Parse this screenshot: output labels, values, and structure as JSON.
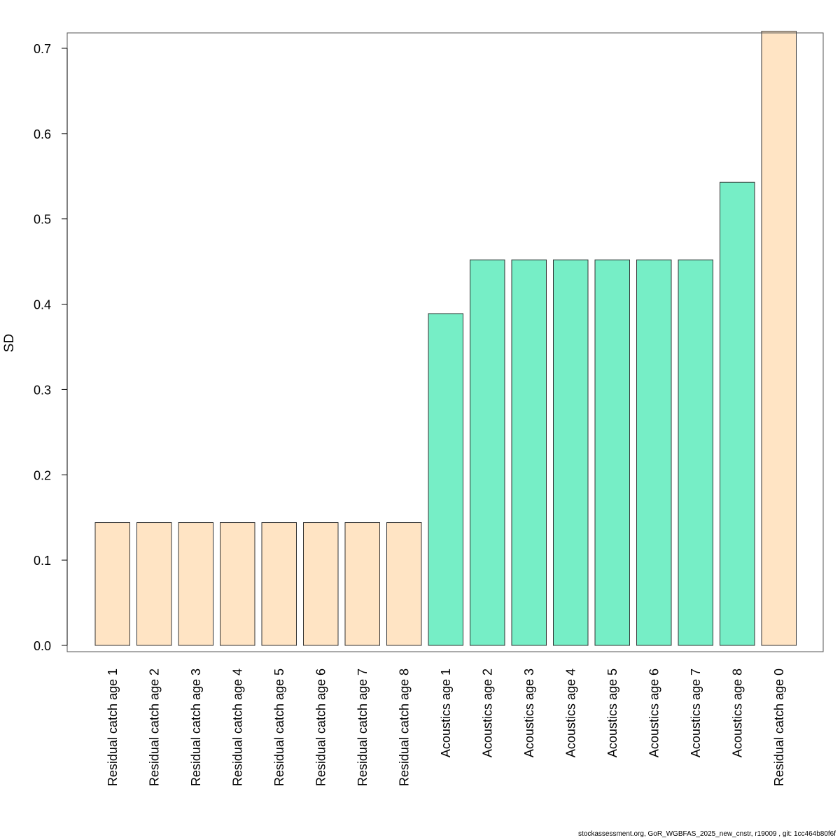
{
  "chart_data": {
    "type": "bar",
    "title": "",
    "xlabel": "",
    "ylabel": "SD",
    "ylim": [
      0,
      0.72
    ],
    "yticks": [
      "0.0",
      "0.1",
      "0.2",
      "0.3",
      "0.4",
      "0.5",
      "0.6",
      "0.7"
    ],
    "categories": [
      "Residual catch age 1",
      "Residual catch age 2",
      "Residual catch age 3",
      "Residual catch age 4",
      "Residual catch age 5",
      "Residual catch age 6",
      "Residual catch age 7",
      "Residual catch age 8",
      "Acoustics age 1",
      "Acoustics age 2",
      "Acoustics age 3",
      "Acoustics age 4",
      "Acoustics age 5",
      "Acoustics age 6",
      "Acoustics age 7",
      "Acoustics age 8",
      "Residual catch age 0"
    ],
    "values": [
      0.144,
      0.144,
      0.144,
      0.144,
      0.144,
      0.144,
      0.144,
      0.144,
      0.389,
      0.452,
      0.452,
      0.452,
      0.452,
      0.452,
      0.452,
      0.543,
      0.72
    ],
    "bar_colors": [
      "#FFE4C4",
      "#FFE4C4",
      "#FFE4C4",
      "#FFE4C4",
      "#FFE4C4",
      "#FFE4C4",
      "#FFE4C4",
      "#FFE4C4",
      "#76EEC6",
      "#76EEC6",
      "#76EEC6",
      "#76EEC6",
      "#76EEC6",
      "#76EEC6",
      "#76EEC6",
      "#76EEC6",
      "#FFE4C4"
    ],
    "grid": false,
    "legend": "none"
  },
  "footer": "stockassessment.org, GoR_WGBFAS_2025_new_cnstr, r19009 , git: 1cc464b80f6f"
}
